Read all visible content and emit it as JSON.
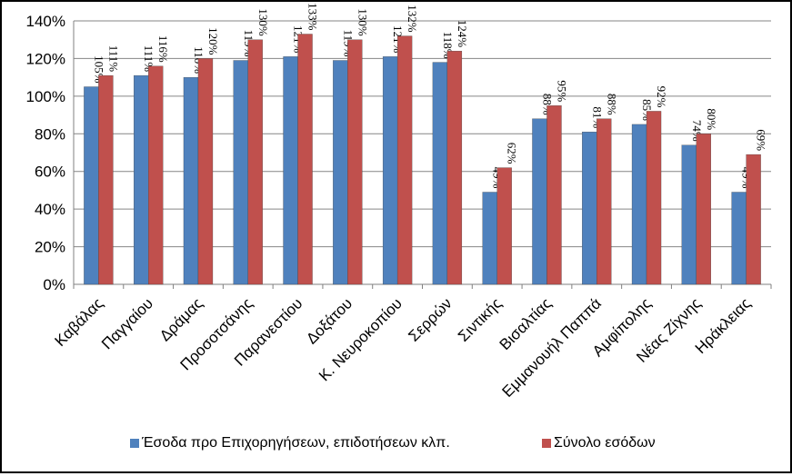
{
  "chart_data": {
    "type": "bar",
    "title": "",
    "xlabel": "",
    "ylabel": "",
    "ylim": [
      0,
      140
    ],
    "y_tick_step": 20,
    "y_tick_suffix": "%",
    "grid": true,
    "legend_position": "bottom",
    "categories": [
      "Καβάλας",
      "Παγγαίου",
      "Δράμας",
      "Προσοτσάνης",
      "Παρανεστίου",
      "Δοξάτου",
      "Κ. Νευροκοπίου",
      "Σερρών",
      "Σιντικής",
      "Βισαλτίας",
      "Εμμανουήλ Παππά",
      "Αμφίπολης",
      "Νέας Ζίχνης",
      "Ηράκλειας"
    ],
    "series": [
      {
        "name": "Έσοδα προ Επιχορηγήσεων, επιδοτήσεων κλπ.",
        "color": "#4f81bd",
        "values": [
          105,
          111,
          110,
          119,
          121,
          119,
          121,
          118,
          49,
          88,
          81,
          85,
          74,
          49
        ],
        "labels": [
          "105%",
          "111%",
          "110%",
          "119%",
          "121%",
          "119%",
          "121%",
          "118%",
          "49%",
          "88%",
          "81%",
          "85%",
          "74%",
          "49%"
        ]
      },
      {
        "name": "Σύνολο εσόδων",
        "color": "#c0504d",
        "values": [
          111,
          116,
          120,
          130,
          133,
          130,
          132,
          124,
          62,
          95,
          88,
          92,
          80,
          69
        ],
        "labels": [
          "111%",
          "116%",
          "120%",
          "130%",
          "133%",
          "130%",
          "132%",
          "124%",
          "62%",
          "95%",
          "88%",
          "92%",
          "80%",
          "69%"
        ]
      }
    ]
  }
}
